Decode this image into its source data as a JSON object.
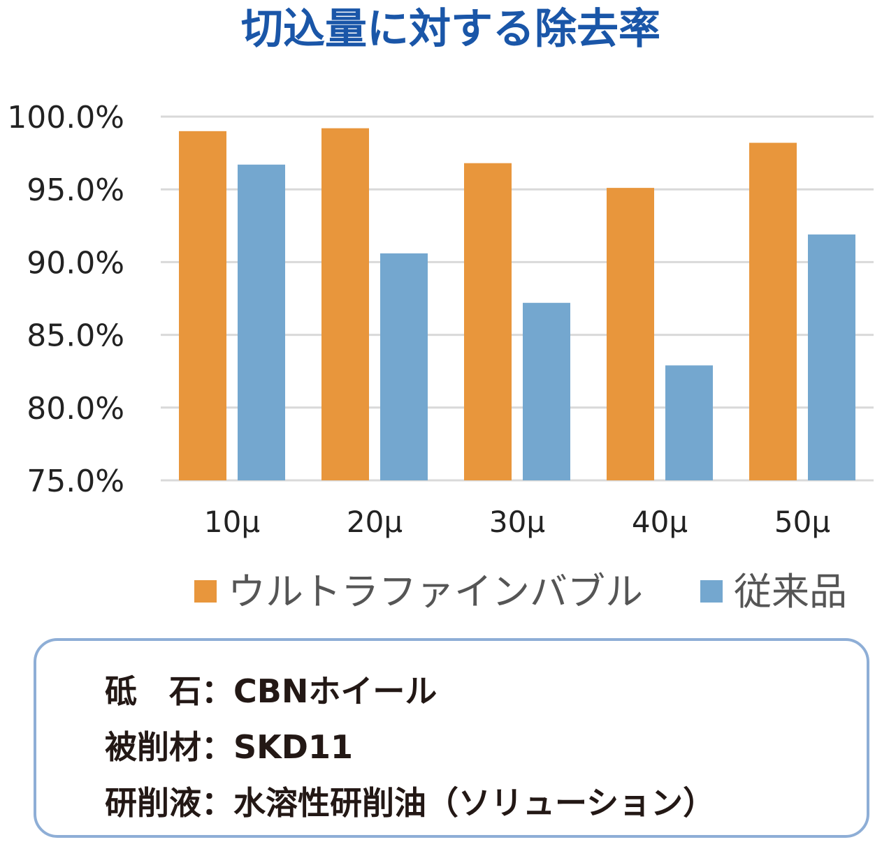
{
  "chart_data": {
    "type": "bar",
    "title": "切込量に対する除去率",
    "categories": [
      "10μ",
      "20μ",
      "30μ",
      "40μ",
      "50μ"
    ],
    "series": [
      {
        "name": "ウルトラファインバブル",
        "color": "#e8963c",
        "values": [
          99.0,
          99.2,
          96.8,
          95.1,
          98.2
        ]
      },
      {
        "name": "従来品",
        "color": "#74a7cf",
        "values": [
          96.7,
          90.6,
          87.2,
          82.9,
          91.9
        ]
      }
    ],
    "ylim": [
      75.0,
      100.0
    ],
    "yticks": [
      "75.0%",
      "80.0%",
      "85.0%",
      "90.0%",
      "95.0%",
      "100.0%"
    ],
    "ytick_values": [
      75,
      80,
      85,
      90,
      95,
      100
    ],
    "grid": true,
    "legend_position": "bottom",
    "gridline_color": "#d9d9d9",
    "xlabel": "",
    "ylabel": ""
  },
  "info": {
    "rows": [
      {
        "label": "砥　石",
        "sep": "：",
        "value": "CBNホイール"
      },
      {
        "label": "被削材",
        "sep": "：",
        "value": "SKD11"
      },
      {
        "label": "研削液",
        "sep": "：",
        "value": "水溶性研削油（ソリューション）"
      }
    ]
  }
}
